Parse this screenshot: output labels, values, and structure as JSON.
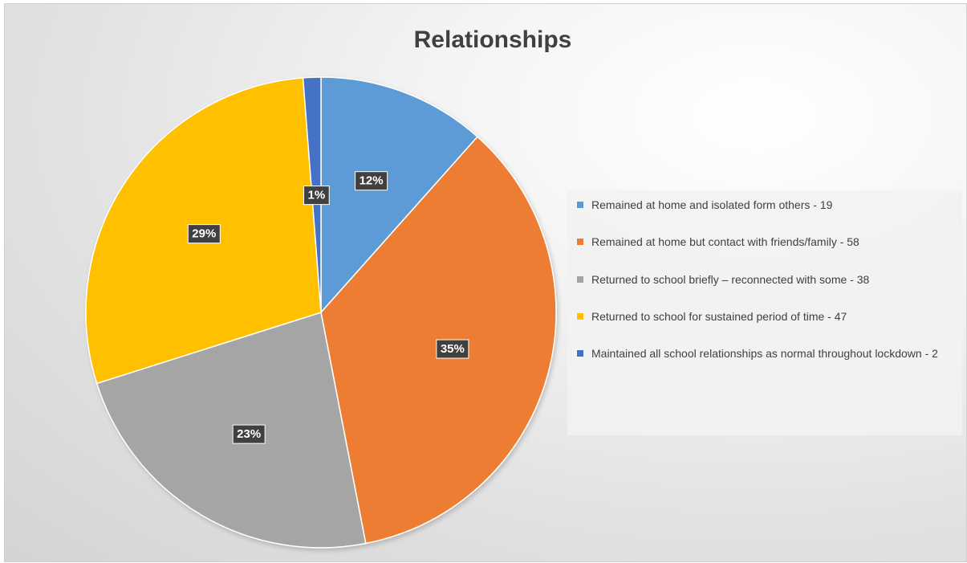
{
  "chart_data": {
    "type": "pie",
    "title": "Relationships",
    "slices": [
      {
        "label": "Remained at home and isolated form others - 19",
        "value": 19,
        "percent_label": "12%",
        "color": "#5b9bd5"
      },
      {
        "label": "Remained at home but contact with friends/family - 58",
        "value": 58,
        "percent_label": "35%",
        "color": "#ed7d31"
      },
      {
        "label": "Returned to school briefly – reconnected with some - 38",
        "value": 38,
        "percent_label": "23%",
        "color": "#a5a5a5"
      },
      {
        "label": "Returned to school for sustained period of time - 47",
        "value": 47,
        "percent_label": "29%",
        "color": "#ffc000"
      },
      {
        "label": "Maintained all school relationships as normal throughout lockdown - 2",
        "value": 2,
        "percent_label": "1%",
        "color": "#4472c4"
      }
    ],
    "legend_position": "right"
  }
}
